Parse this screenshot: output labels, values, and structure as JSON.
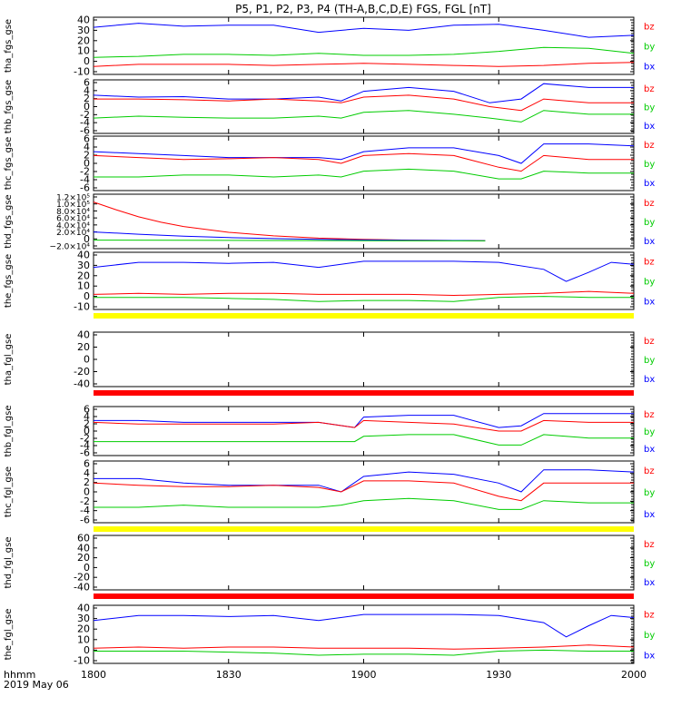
{
  "title": "P5, P1, P2, P3, P4 (TH-A,B,C,D,E) FGS, FGL [nT]",
  "footer": {
    "hhmm": "hhmm",
    "date": "2019 May 06"
  },
  "colors": {
    "bz": "#ff0000",
    "by": "#00cc00",
    "bx": "#0000ff",
    "flag_yellow": "#ffff00",
    "flag_red": "#ff0000"
  },
  "series_labels": [
    "bz",
    "by",
    "bx"
  ],
  "x_axis": {
    "range": [
      "18:00",
      "20:00"
    ],
    "ticks": [
      "1800",
      "1830",
      "1900",
      "1930",
      "2000"
    ]
  },
  "chart_data": [
    {
      "type": "line",
      "ylabel": "tha_fgs_gse",
      "ylim": [
        -15,
        42
      ],
      "yticks": [
        "40",
        "30",
        "20",
        "10",
        "0",
        "-10"
      ],
      "flag": null,
      "series": [
        {
          "label": "bx",
          "color": "#0000ff",
          "x": [
            0,
            10,
            20,
            30,
            40,
            50,
            60,
            70,
            80,
            90,
            100,
            110,
            120
          ],
          "values": [
            32,
            36,
            33,
            34,
            34,
            27,
            31,
            29,
            34,
            35,
            29,
            22,
            24
          ]
        },
        {
          "label": "by",
          "color": "#00cc00",
          "x": [
            0,
            10,
            20,
            30,
            40,
            50,
            60,
            70,
            80,
            90,
            100,
            110,
            120
          ],
          "values": [
            2,
            3,
            5,
            5,
            4,
            6,
            4,
            4,
            5,
            8,
            12,
            11,
            6
          ]
        },
        {
          "label": "bz",
          "color": "#ff0000",
          "x": [
            0,
            10,
            20,
            30,
            40,
            50,
            60,
            70,
            80,
            90,
            100,
            110,
            120
          ],
          "values": [
            -7,
            -5,
            -5,
            -5,
            -6,
            -5,
            -4,
            -5,
            -6,
            -7,
            -6,
            -4,
            -3
          ]
        }
      ]
    },
    {
      "type": "line",
      "ylabel": "thb_fgs_gse",
      "ylim": [
        -7,
        7
      ],
      "yticks": [
        "6",
        "4",
        "2",
        "0",
        "-2",
        "-4",
        "-6"
      ],
      "flag": null,
      "series": [
        {
          "label": "bx",
          "color": "#0000ff",
          "x": [
            0,
            10,
            20,
            30,
            40,
            50,
            55,
            60,
            70,
            80,
            88,
            95,
            100,
            110,
            120
          ],
          "values": [
            3,
            2.5,
            2.6,
            2,
            2,
            2.5,
            1.5,
            4,
            5,
            4,
            1,
            2,
            6,
            5,
            5
          ]
        },
        {
          "label": "bz",
          "color": "#ff0000",
          "x": [
            0,
            10,
            20,
            30,
            40,
            50,
            55,
            60,
            70,
            80,
            88,
            95,
            100,
            110,
            120
          ],
          "values": [
            2,
            2,
            1.8,
            1.5,
            2,
            1.5,
            1,
            2.5,
            3,
            2,
            0,
            -1,
            2,
            1,
            1
          ]
        },
        {
          "label": "by",
          "color": "#00cc00",
          "x": [
            0,
            10,
            20,
            30,
            40,
            50,
            55,
            60,
            70,
            80,
            88,
            95,
            100,
            110,
            120
          ],
          "values": [
            -3,
            -2.5,
            -2.8,
            -3,
            -3,
            -2.5,
            -3,
            -1.5,
            -1,
            -2,
            -3,
            -4,
            -1,
            -2,
            -2
          ]
        }
      ]
    },
    {
      "type": "line",
      "ylabel": "thc_fgs_gse",
      "ylim": [
        -7,
        7
      ],
      "yticks": [
        "6",
        "4",
        "2",
        "0",
        "-2",
        "-4",
        "-6"
      ],
      "flag": null,
      "series": [
        {
          "label": "bx",
          "color": "#0000ff",
          "x": [
            0,
            10,
            20,
            30,
            40,
            50,
            55,
            60,
            70,
            80,
            90,
            95,
            100,
            110,
            120
          ],
          "values": [
            3,
            2.5,
            2,
            1.5,
            1.5,
            1.5,
            1,
            3,
            4,
            4,
            2,
            0,
            5,
            5,
            4.5
          ]
        },
        {
          "label": "bz",
          "color": "#ff0000",
          "x": [
            0,
            10,
            20,
            30,
            40,
            50,
            55,
            60,
            70,
            80,
            90,
            95,
            100,
            110,
            120
          ],
          "values": [
            2,
            1.5,
            1,
            1.2,
            1.5,
            1,
            0,
            2,
            2.5,
            2,
            -1,
            -2,
            2,
            1,
            1
          ]
        },
        {
          "label": "by",
          "color": "#00cc00",
          "x": [
            0,
            10,
            20,
            30,
            40,
            50,
            55,
            60,
            70,
            80,
            90,
            95,
            100,
            110,
            120
          ],
          "values": [
            -3.5,
            -3.5,
            -3,
            -3,
            -3.5,
            -3,
            -3.5,
            -2,
            -1.5,
            -2,
            -4,
            -4,
            -2,
            -2.5,
            -2.5
          ]
        }
      ]
    },
    {
      "type": "line",
      "ylabel": "thd_fgs_gse",
      "ylim": [
        -20000,
        120000
      ],
      "yticks": [
        "1.2×10⁵",
        "1.0×10⁵",
        "8.0×10⁴",
        "6.0×10⁴",
        "4.0×10⁴",
        "2.0×10⁴",
        "0",
        "−2.0×10⁴"
      ],
      "flag": null,
      "series": [
        {
          "label": "bz",
          "color": "#ff0000",
          "x": [
            0,
            5,
            10,
            15,
            20,
            30,
            40,
            50,
            60,
            70,
            80,
            87
          ],
          "values": [
            100000,
            80000,
            62000,
            48000,
            37000,
            22000,
            13000,
            7000,
            4000,
            2000,
            1000,
            500
          ]
        },
        {
          "label": "bx",
          "color": "#0000ff",
          "x": [
            0,
            10,
            20,
            30,
            40,
            50,
            60,
            70,
            80,
            87
          ],
          "values": [
            23000,
            17000,
            12000,
            8500,
            6000,
            4000,
            2500,
            1500,
            1000,
            500
          ]
        },
        {
          "label": "by",
          "color": "#00cc00",
          "x": [
            0,
            20,
            40,
            60,
            80,
            87
          ],
          "values": [
            2000,
            1500,
            1000,
            500,
            0,
            0
          ]
        }
      ]
    },
    {
      "type": "line",
      "ylabel": "the_fgs_gse",
      "ylim": [
        -15,
        42
      ],
      "yticks": [
        "40",
        "30",
        "20",
        "10",
        "0",
        "-10"
      ],
      "flag": "flag_yellow",
      "series": [
        {
          "label": "bx",
          "color": "#0000ff",
          "x": [
            0,
            10,
            20,
            30,
            40,
            50,
            60,
            70,
            80,
            90,
            100,
            105,
            110,
            115,
            120
          ],
          "values": [
            27,
            32,
            32,
            31,
            32,
            27,
            33,
            33,
            33,
            32,
            25,
            13,
            22,
            32,
            30
          ]
        },
        {
          "label": "bz",
          "color": "#ff0000",
          "x": [
            0,
            10,
            20,
            30,
            40,
            50,
            60,
            70,
            80,
            90,
            100,
            110,
            120
          ],
          "values": [
            0,
            1,
            0,
            1,
            1,
            0,
            0,
            0,
            -1,
            0,
            1,
            3,
            1
          ]
        },
        {
          "label": "by",
          "color": "#00cc00",
          "x": [
            0,
            10,
            20,
            30,
            40,
            50,
            60,
            70,
            80,
            90,
            100,
            110,
            120
          ],
          "values": [
            -3,
            -3,
            -3,
            -4,
            -5,
            -7,
            -6,
            -6,
            -7,
            -3,
            -2,
            -3,
            -3
          ]
        }
      ]
    },
    {
      "type": "line",
      "ylabel": "tha_fgl_gse",
      "ylim": [
        -55,
        50
      ],
      "yticks": [
        "40",
        "20",
        "0",
        "-20",
        "-40"
      ],
      "flag": "flag_red",
      "series": []
    },
    {
      "type": "line",
      "ylabel": "thb_fgl_gse",
      "ylim": [
        -7,
        7
      ],
      "yticks": [
        "6",
        "4",
        "2",
        "0",
        "-2",
        "-4",
        "-6"
      ],
      "flag": null,
      "series": [
        {
          "label": "bx",
          "color": "#0000ff",
          "x": [
            0,
            10,
            20,
            30,
            40,
            50,
            58,
            60,
            70,
            80,
            90,
            95,
            100,
            110,
            120
          ],
          "values": [
            3,
            3,
            2.5,
            2.5,
            2.5,
            2.5,
            1,
            4,
            4.5,
            4.5,
            1,
            1.5,
            5,
            5,
            5
          ]
        },
        {
          "label": "bz",
          "color": "#ff0000",
          "x": [
            0,
            10,
            20,
            30,
            40,
            50,
            58,
            60,
            70,
            80,
            90,
            95,
            100,
            110,
            120
          ],
          "values": [
            2.5,
            2,
            2,
            2,
            2,
            2.5,
            1,
            3,
            2.5,
            2,
            0,
            0,
            3,
            2.5,
            2.5
          ]
        },
        {
          "label": "by",
          "color": "#00cc00",
          "x": [
            0,
            10,
            20,
            30,
            40,
            50,
            58,
            60,
            70,
            80,
            90,
            95,
            100,
            110,
            120
          ],
          "values": [
            -3,
            -3,
            -3,
            -3,
            -3,
            -3,
            -3,
            -1.5,
            -1,
            -1,
            -4,
            -4,
            -1,
            -2,
            -2
          ]
        }
      ]
    },
    {
      "type": "line",
      "ylabel": "thc_fgl_gse",
      "ylim": [
        -7,
        7
      ],
      "yticks": [
        "6",
        "4",
        "2",
        "0",
        "-2",
        "-4",
        "-6"
      ],
      "flag": "flag_yellow",
      "series": [
        {
          "label": "bx",
          "color": "#0000ff",
          "x": [
            0,
            10,
            20,
            30,
            40,
            50,
            55,
            60,
            70,
            80,
            90,
            95,
            100,
            110,
            120
          ],
          "values": [
            3,
            3,
            2,
            1.5,
            1.5,
            1.5,
            0,
            3.5,
            4.5,
            4,
            2,
            0,
            5,
            5,
            4.5
          ]
        },
        {
          "label": "bz",
          "color": "#ff0000",
          "x": [
            0,
            10,
            20,
            30,
            40,
            50,
            55,
            60,
            70,
            80,
            90,
            95,
            100,
            110,
            120
          ],
          "values": [
            2,
            1.5,
            1.2,
            1.2,
            1.5,
            1,
            0,
            2.5,
            2.5,
            2,
            -1,
            -2,
            2,
            2,
            2
          ]
        },
        {
          "label": "by",
          "color": "#00cc00",
          "x": [
            0,
            10,
            20,
            30,
            40,
            50,
            55,
            60,
            70,
            80,
            90,
            95,
            100,
            110,
            120
          ],
          "values": [
            -3.5,
            -3.5,
            -3,
            -3.5,
            -3.5,
            -3.5,
            -3,
            -2,
            -1.5,
            -2,
            -4,
            -4,
            -2,
            -2.5,
            -2.5
          ]
        }
      ]
    },
    {
      "type": "line",
      "ylabel": "thd_fgl_gse",
      "ylim": [
        -55,
        70
      ],
      "yticks": [
        "60",
        "40",
        "20",
        "0",
        "-20",
        "-40"
      ],
      "flag": "flag_red",
      "series": []
    },
    {
      "type": "line",
      "ylabel": "the_fgl_gse",
      "ylim": [
        -15,
        42
      ],
      "yticks": [
        "40",
        "30",
        "20",
        "10",
        "0",
        "-10"
      ],
      "flag": null,
      "series": [
        {
          "label": "bx",
          "color": "#0000ff",
          "x": [
            0,
            10,
            20,
            30,
            40,
            50,
            60,
            70,
            80,
            90,
            100,
            105,
            110,
            115,
            120
          ],
          "values": [
            27,
            32,
            32,
            31,
            32,
            27,
            33,
            33,
            33,
            32,
            25,
            11,
            22,
            32,
            30
          ]
        },
        {
          "label": "bz",
          "color": "#ff0000",
          "x": [
            0,
            10,
            20,
            30,
            40,
            50,
            60,
            70,
            80,
            90,
            100,
            110,
            120
          ],
          "values": [
            0,
            1,
            0,
            1,
            1,
            0,
            0,
            0,
            -1,
            0,
            1,
            3,
            1
          ]
        },
        {
          "label": "by",
          "color": "#00cc00",
          "x": [
            0,
            10,
            20,
            30,
            40,
            50,
            60,
            70,
            80,
            90,
            100,
            110,
            120
          ],
          "values": [
            -3,
            -3,
            -3,
            -4,
            -5,
            -7,
            -6,
            -6,
            -7,
            -3,
            -2,
            -3,
            -3
          ]
        }
      ]
    }
  ]
}
